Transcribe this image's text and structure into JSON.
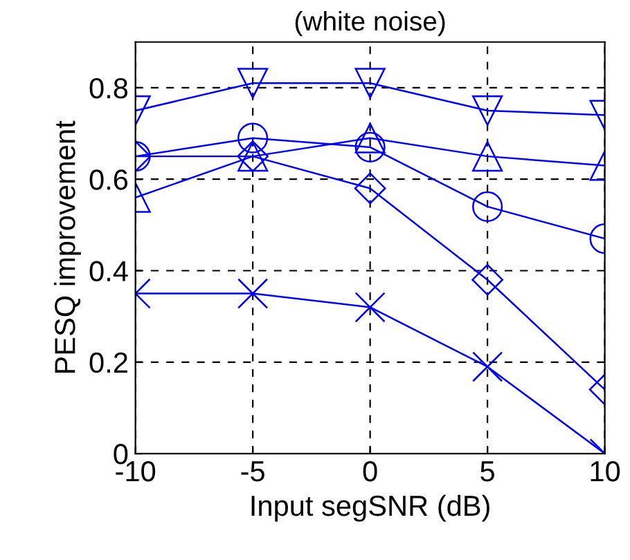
{
  "chart_data": {
    "type": "line",
    "title": "(white noise)",
    "xlabel": "Input segSNR (dB)",
    "ylabel": "PESQ improvement",
    "x": [
      -10,
      -5,
      0,
      5,
      10
    ],
    "series": [
      {
        "color": "#0000ff",
        "marker": "triangle_down",
        "values": [
          0.75,
          0.81,
          0.81,
          0.75,
          0.74
        ]
      },
      {
        "color": "#0000ff",
        "marker": "triangle",
        "values": [
          0.56,
          0.65,
          0.69,
          0.65,
          0.63
        ]
      },
      {
        "color": "#0000ff",
        "marker": "circle",
        "values": [
          0.65,
          0.69,
          0.67,
          0.54,
          0.47
        ]
      },
      {
        "color": "#0000ff",
        "marker": "diamond",
        "values": [
          0.65,
          0.65,
          0.58,
          0.38,
          0.14
        ]
      },
      {
        "color": "#0000ff",
        "marker": "cross",
        "values": [
          0.35,
          0.35,
          0.32,
          0.19,
          0
        ]
      }
    ],
    "xlim": [
      -10,
      10
    ],
    "ylim": [
      0,
      0.9
    ],
    "xticks": [
      -10,
      -5,
      0,
      5,
      10
    ],
    "yticks": [
      0,
      0.2,
      0.4,
      0.6,
      0.8
    ],
    "grid": true,
    "line_style": "solid"
  }
}
